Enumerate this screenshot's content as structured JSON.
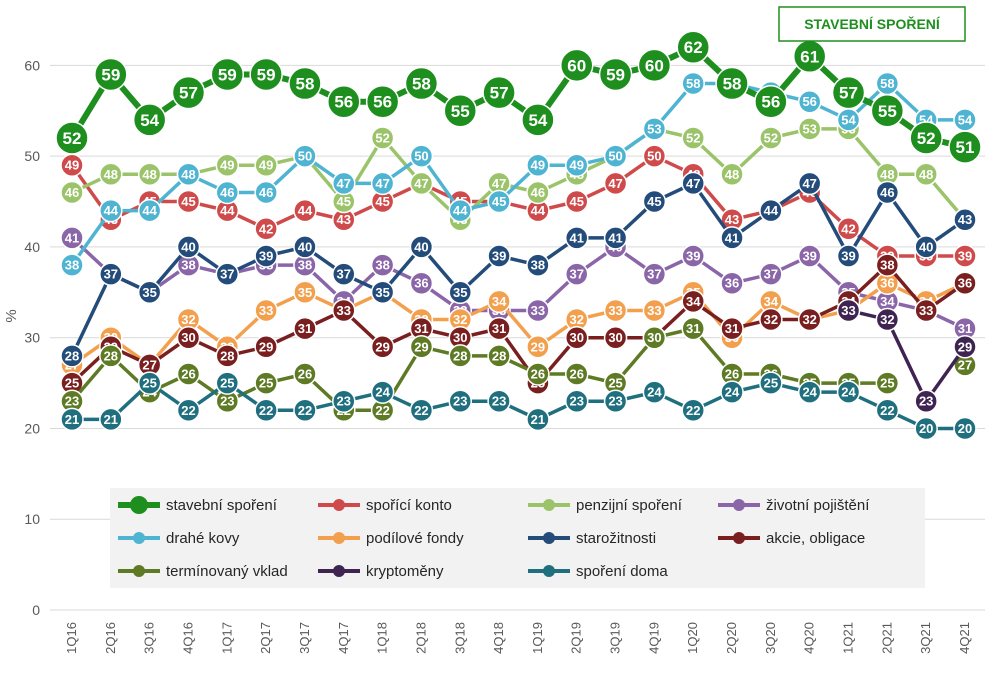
{
  "chart_data": {
    "type": "line",
    "ylabel": "%",
    "ylim": [
      0,
      65
    ],
    "yticks": [
      0,
      10,
      20,
      30,
      40,
      50,
      60
    ],
    "categories": [
      "1Q16",
      "2Q16",
      "3Q16",
      "4Q16",
      "1Q17",
      "2Q17",
      "3Q17",
      "4Q17",
      "1Q18",
      "2Q18",
      "3Q18",
      "4Q18",
      "1Q19",
      "2Q19",
      "3Q19",
      "4Q19",
      "1Q20",
      "2Q20",
      "3Q20",
      "4Q20",
      "1Q21",
      "2Q21",
      "3Q21",
      "4Q21"
    ],
    "callout": "STAVEBNÍ SPOŘENÍ",
    "legend_position": "bottom-center",
    "series": [
      {
        "name": "stavební spoření",
        "color": "#1e8f1e",
        "emphasis": true,
        "values": [
          52,
          59,
          54,
          57,
          59,
          59,
          58,
          56,
          56,
          58,
          55,
          57,
          54,
          60,
          59,
          60,
          62,
          58,
          56,
          61,
          57,
          55,
          52,
          51
        ]
      },
      {
        "name": "spořící konto",
        "color": "#cf4b4b",
        "values": [
          49,
          43,
          45,
          45,
          44,
          42,
          44,
          43,
          45,
          47,
          45,
          45,
          44,
          45,
          47,
          50,
          48,
          43,
          44,
          46,
          42,
          39,
          39,
          39
        ]
      },
      {
        "name": "penzijní spoření",
        "color": "#9bc46a",
        "values": [
          46,
          48,
          48,
          48,
          49,
          49,
          50,
          45,
          52,
          47,
          43,
          47,
          46,
          48,
          50,
          53,
          52,
          48,
          52,
          53,
          53,
          48,
          48,
          43
        ]
      },
      {
        "name": "životní pojištění",
        "color": "#8a66a8",
        "values": [
          41,
          37,
          35,
          38,
          37,
          38,
          38,
          34,
          38,
          36,
          33,
          33,
          33,
          37,
          40,
          37,
          39,
          36,
          37,
          39,
          35,
          34,
          33,
          31
        ]
      },
      {
        "name": "drahé kovy",
        "color": "#4fb4d2",
        "values": [
          38,
          44,
          44,
          48,
          46,
          46,
          50,
          47,
          47,
          50,
          44,
          45,
          49,
          49,
          50,
          53,
          58,
          58,
          57,
          56,
          54,
          58,
          54,
          54
        ]
      },
      {
        "name": "podílové fondy",
        "color": "#f3a04e",
        "values": [
          27,
          30,
          27,
          32,
          29,
          33,
          35,
          33,
          35,
          32,
          32,
          34,
          29,
          32,
          33,
          33,
          35,
          30,
          34,
          32,
          33,
          36,
          34,
          36
        ]
      },
      {
        "name": "starožitnosti",
        "color": "#244c7a",
        "values": [
          28,
          37,
          35,
          40,
          37,
          39,
          40,
          37,
          35,
          40,
          35,
          39,
          38,
          41,
          41,
          45,
          47,
          41,
          44,
          47,
          39,
          46,
          40,
          43
        ]
      },
      {
        "name": "akcie, obligace",
        "color": "#7a1f1f",
        "values": [
          25,
          29,
          27,
          30,
          28,
          29,
          31,
          33,
          29,
          31,
          30,
          31,
          25,
          30,
          30,
          30,
          34,
          31,
          32,
          32,
          34,
          38,
          33,
          36
        ]
      },
      {
        "name": "termínovaný vklad",
        "color": "#5e7a24",
        "values": [
          23,
          28,
          24,
          26,
          23,
          25,
          26,
          22,
          22,
          29,
          28,
          28,
          26,
          26,
          25,
          30,
          31,
          26,
          26,
          25,
          25,
          25,
          null,
          27
        ]
      },
      {
        "name": "kryptoměny",
        "color": "#3f2452",
        "values": [
          null,
          null,
          null,
          null,
          null,
          null,
          null,
          null,
          null,
          null,
          null,
          null,
          null,
          null,
          null,
          null,
          null,
          null,
          null,
          null,
          33,
          32,
          23,
          29
        ]
      },
      {
        "name": "spoření doma",
        "color": "#1f6f7f",
        "values": [
          21,
          21,
          25,
          22,
          25,
          22,
          22,
          23,
          24,
          22,
          23,
          23,
          21,
          23,
          23,
          24,
          22,
          24,
          25,
          24,
          24,
          22,
          20,
          20
        ]
      }
    ]
  }
}
